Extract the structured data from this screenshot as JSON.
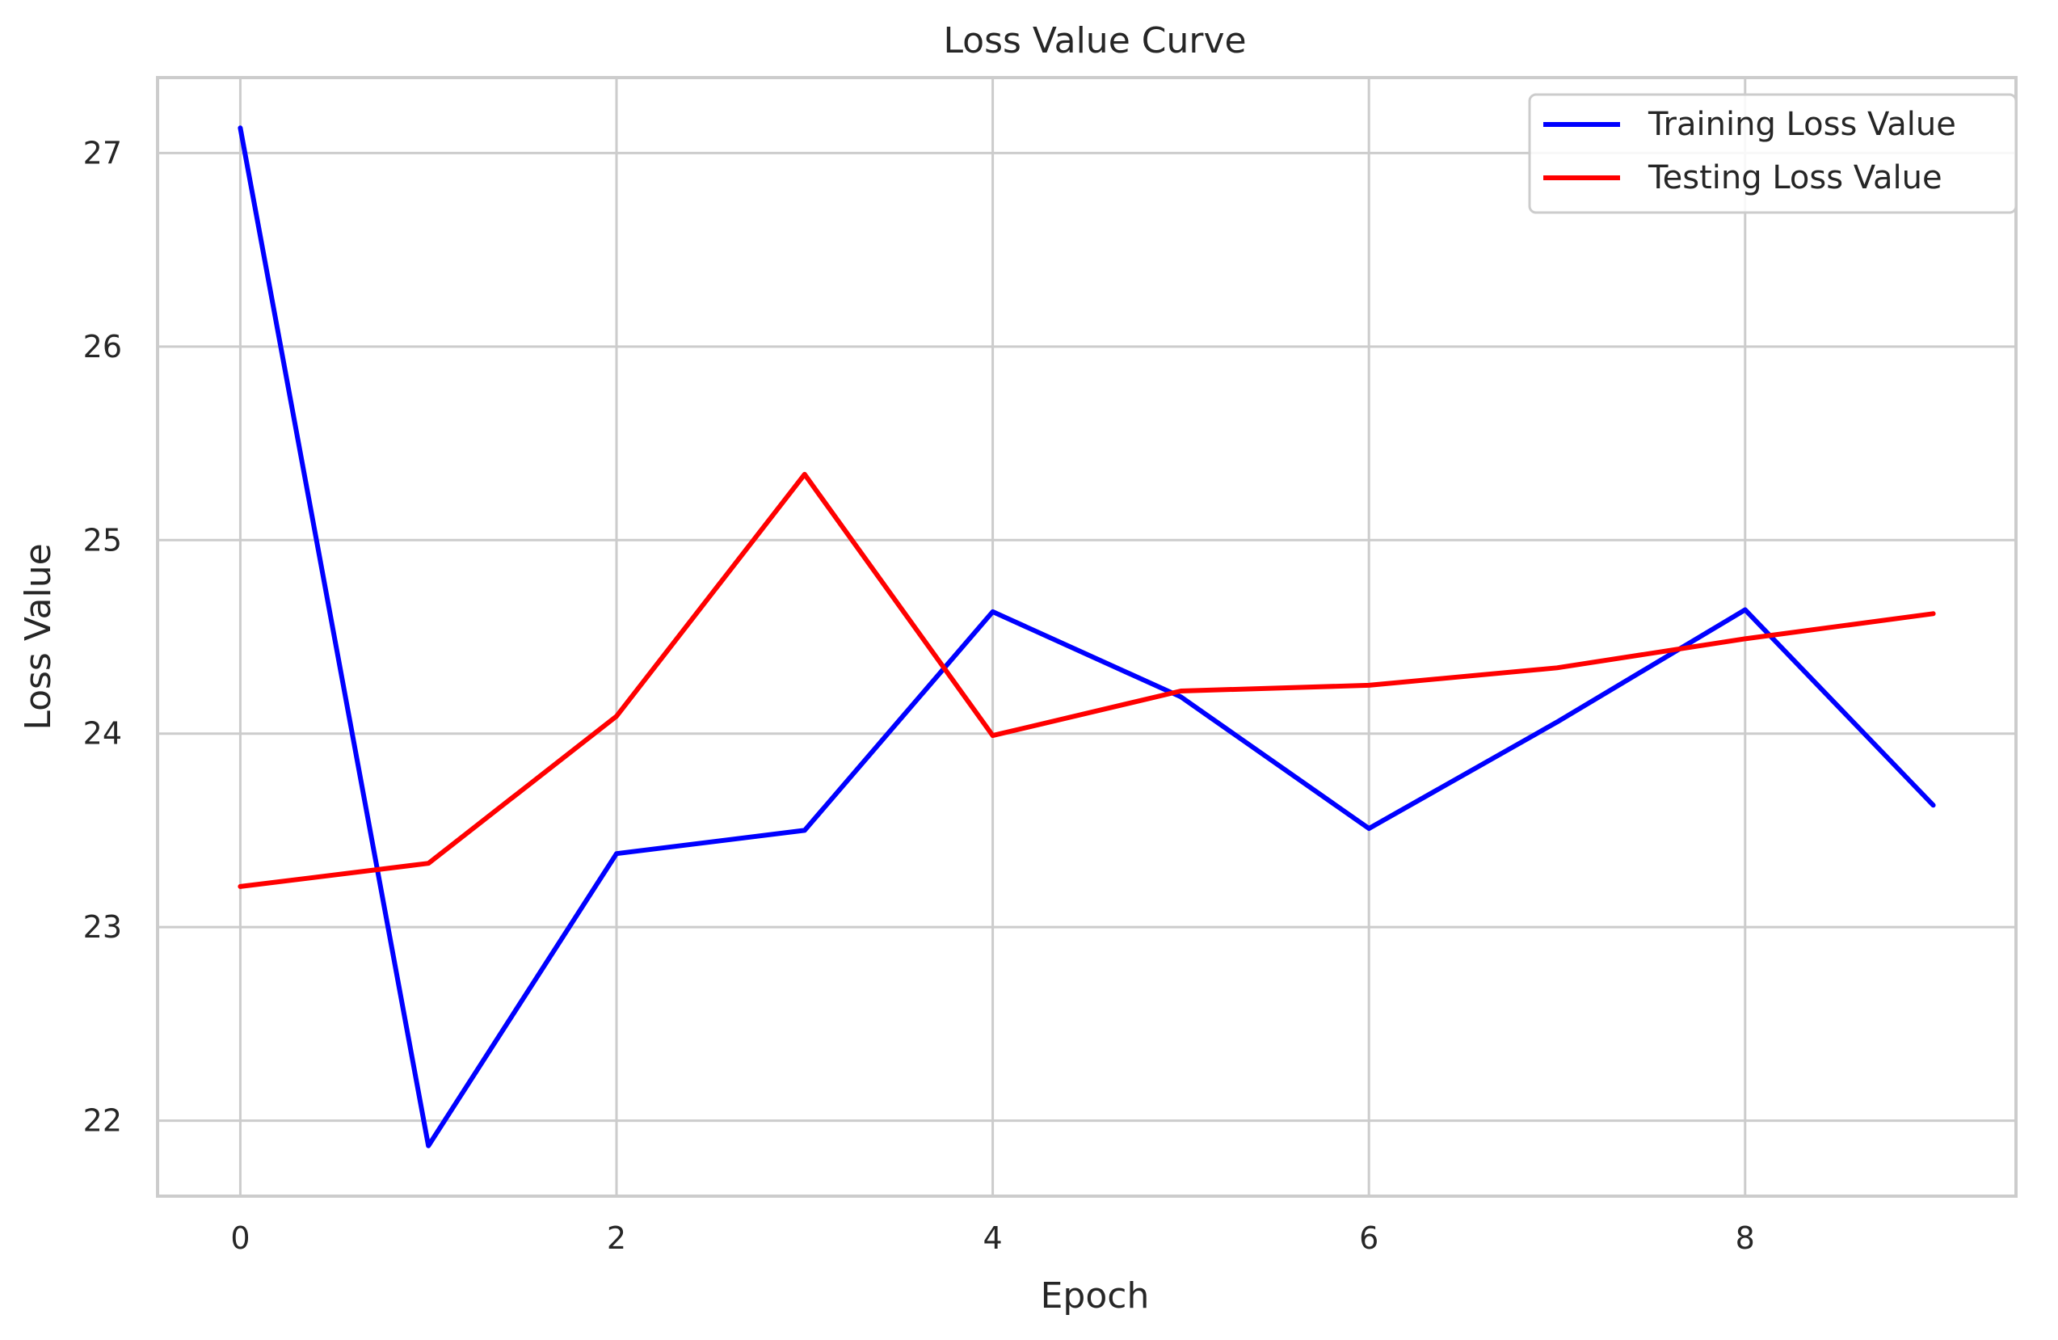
{
  "chart_data": {
    "type": "line",
    "title": "Loss Value Curve",
    "xlabel": "Epoch",
    "ylabel": "Loss Value",
    "x": [
      0,
      1,
      2,
      3,
      4,
      5,
      6,
      7,
      8,
      9
    ],
    "xlim": [
      -0.44,
      9.44
    ],
    "ylim": [
      21.61,
      27.39
    ],
    "xticks": [
      0,
      2,
      4,
      6,
      8
    ],
    "yticks": [
      22,
      23,
      24,
      25,
      26,
      27
    ],
    "grid": true,
    "legend_position": "top-right",
    "series": [
      {
        "name": "Training Loss Value",
        "color": "#0000ff",
        "values": [
          27.13,
          21.87,
          23.38,
          23.5,
          24.63,
          24.19,
          23.51,
          24.06,
          24.64,
          23.63
        ]
      },
      {
        "name": "Testing Loss Value",
        "color": "#ff0000",
        "values": [
          23.21,
          23.33,
          24.09,
          25.34,
          23.99,
          24.22,
          24.25,
          24.34,
          24.49,
          24.62
        ]
      }
    ]
  }
}
